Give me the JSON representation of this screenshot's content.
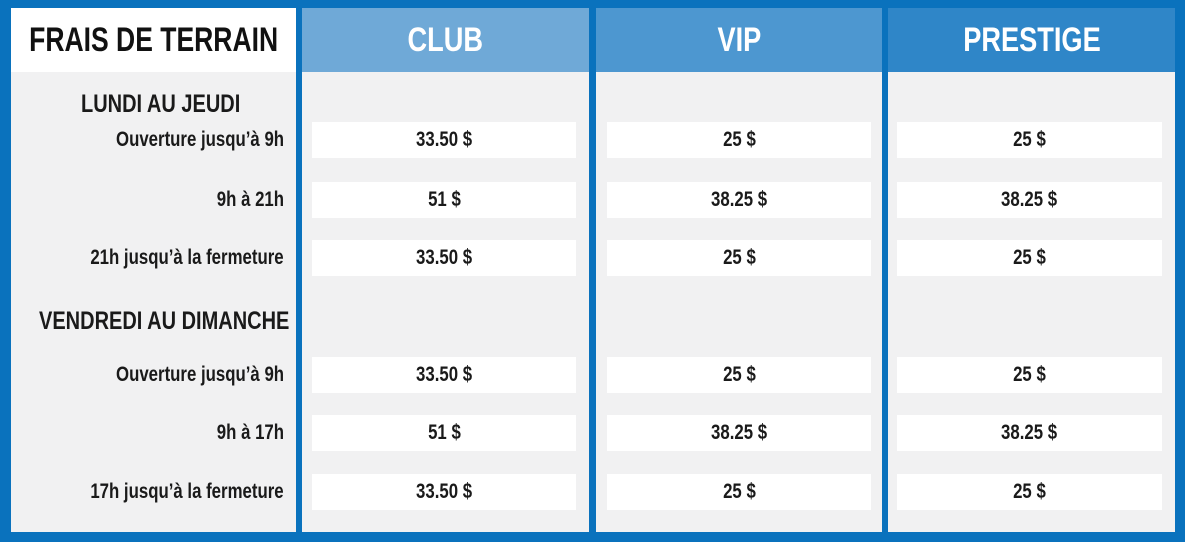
{
  "table": {
    "title": "FRAIS DE TERRAIN",
    "tiers": [
      "CLUB",
      "VIP",
      "PRESTIGE"
    ],
    "sections": [
      {
        "title": "LUNDI AU JEUDI",
        "rows": [
          {
            "label": "Ouverture jusqu’à 9h",
            "prices": [
              "33.50 $",
              "25 $",
              "25 $"
            ]
          },
          {
            "label": "9h à 21h",
            "prices": [
              "51 $",
              "38.25 $",
              "38.25 $"
            ]
          },
          {
            "label": "21h jusqu’à la fermeture",
            "prices": [
              "33.50 $",
              "25 $",
              "25 $"
            ]
          }
        ]
      },
      {
        "title": "VENDREDI AU DIMANCHE",
        "rows": [
          {
            "label": "Ouverture jusqu’à 9h",
            "prices": [
              "33.50 $",
              "25 $",
              "25 $"
            ]
          },
          {
            "label": "9h à 17h",
            "prices": [
              "51 $",
              "38.25 $",
              "38.25 $"
            ]
          },
          {
            "label": "17h jusqu’à la fermeture",
            "prices": [
              "33.50 $",
              "25 $",
              "25 $"
            ]
          }
        ]
      }
    ]
  },
  "colors": {
    "frame": "#0a72bd",
    "panel": "#f1f1f2",
    "club_header": "#6fa9d7",
    "vip_header": "#4d97d0",
    "prestige_header": "#2f86c8"
  }
}
